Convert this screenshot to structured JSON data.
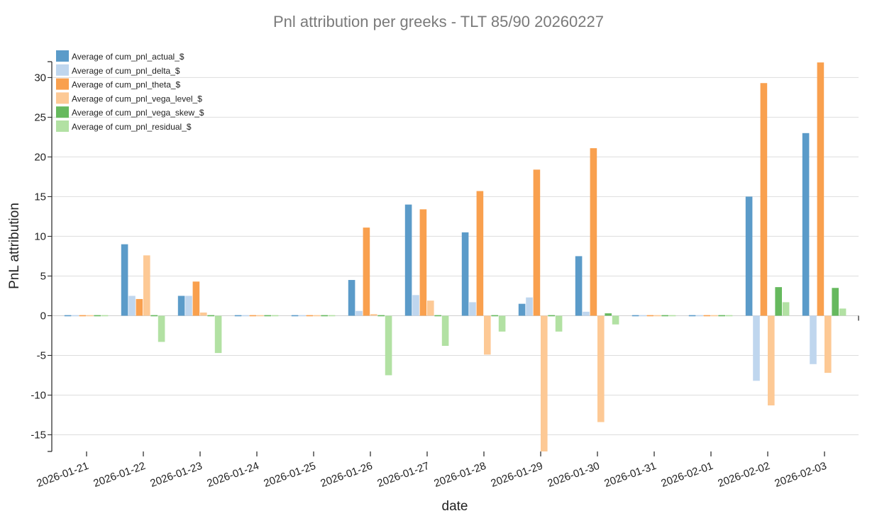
{
  "chart_data": {
    "type": "bar",
    "title": "Pnl attribution per greeks - TLT 85/90 20260227",
    "xlabel": "date",
    "ylabel": "PnL attribution",
    "ylim": [
      -17.1,
      32
    ],
    "yticks": [
      -15,
      -10,
      -5,
      0,
      5,
      10,
      15,
      20,
      25,
      30
    ],
    "grid": true,
    "legend_position": "top-left",
    "categories": [
      "2026-01-21",
      "2026-01-22",
      "2026-01-23",
      "2026-01-24",
      "2026-01-25",
      "2026-01-26",
      "2026-01-27",
      "2026-01-28",
      "2026-01-29",
      "2026-01-30",
      "2026-01-31",
      "2026-02-01",
      "2026-02-02",
      "2026-02-03"
    ],
    "series": [
      {
        "name": "Average of cum_pnl_actual_$",
        "color": "#5b9bc9",
        "values": [
          0,
          9.0,
          2.5,
          0,
          0,
          4.5,
          14.0,
          10.5,
          1.5,
          7.5,
          0,
          0,
          15.0,
          23.0
        ]
      },
      {
        "name": "Average of cum_pnl_delta_$",
        "color": "#bfd6ee",
        "values": [
          0,
          2.5,
          2.5,
          0,
          0,
          0.6,
          2.6,
          1.7,
          2.3,
          0.5,
          0,
          0,
          -8.2,
          -6.1
        ]
      },
      {
        "name": "Average of cum_pnl_theta_$",
        "color": "#f9a04e",
        "values": [
          0,
          2.1,
          4.3,
          0,
          0,
          11.1,
          13.4,
          15.7,
          18.4,
          21.1,
          0,
          0,
          29.3,
          31.9
        ]
      },
      {
        "name": "Average of cum_pnl_vega_level_$",
        "color": "#fdc995",
        "values": [
          0,
          7.6,
          0.4,
          0,
          0,
          0.2,
          1.9,
          -4.9,
          -17.1,
          -13.4,
          0,
          0,
          -11.3,
          -7.2
        ]
      },
      {
        "name": "Average of cum_pnl_vega_skew_$",
        "color": "#66b95e",
        "values": [
          0,
          0,
          0,
          0,
          0,
          0.1,
          0,
          0,
          0,
          0.3,
          0,
          0,
          3.6,
          3.5
        ]
      },
      {
        "name": "Average of cum_pnl_residual_$",
        "color": "#b2e1a3",
        "values": [
          0,
          -3.3,
          -4.7,
          0,
          0,
          -7.5,
          -3.8,
          -2.0,
          -2.0,
          -1.1,
          0,
          0,
          1.7,
          0.9
        ]
      }
    ]
  }
}
